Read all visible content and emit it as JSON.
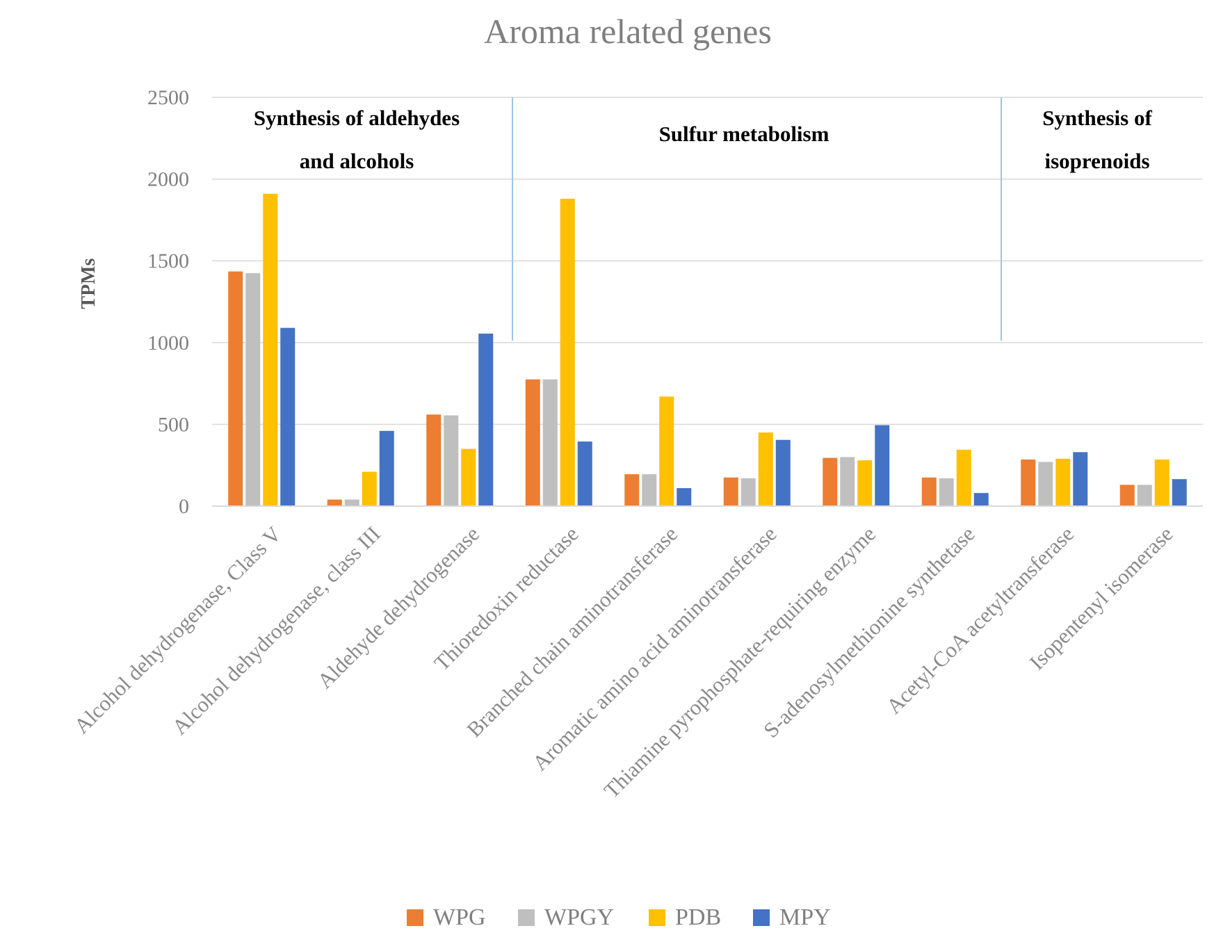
{
  "chart_data": {
    "type": "bar",
    "title": "Aroma related genes",
    "xlabel": "",
    "ylabel": "TPMs",
    "ylim": [
      0,
      2500
    ],
    "yticks": [
      0,
      500,
      1000,
      1500,
      2000,
      2500
    ],
    "grid": true,
    "legend_position": "bottom",
    "categories": [
      "Alcohol dehydrogenase, Class V",
      "Alcohol dehydrogenase, class III",
      "Aldehyde dehydrogenase",
      "Thioredoxin reductase",
      "Branched chain aminotransferase",
      "Aromatic amino acid aminotransferase",
      "Thiamine pyrophosphate-requiring enzyme",
      "S-adenosylmethionine synthetase",
      "Acetyl-CoA acetyltransferase",
      "Isopentenyl isomerase"
    ],
    "series": [
      {
        "name": "WPG",
        "color": "#ED7D31",
        "values": [
          1435,
          40,
          560,
          775,
          195,
          175,
          295,
          175,
          285,
          130
        ]
      },
      {
        "name": "WPGY",
        "color": "#BFBFBF",
        "values": [
          1425,
          40,
          555,
          775,
          195,
          170,
          300,
          170,
          270,
          130
        ]
      },
      {
        "name": "PDB",
        "color": "#FFC000",
        "values": [
          1910,
          210,
          350,
          1880,
          670,
          450,
          280,
          345,
          290,
          285
        ]
      },
      {
        "name": "MPY",
        "color": "#4472C4",
        "values": [
          1090,
          460,
          1055,
          395,
          110,
          405,
          495,
          80,
          330,
          165
        ]
      }
    ],
    "annotations": [
      {
        "lines": [
          "Synthesis of aldehydes",
          "and alcohols"
        ]
      },
      {
        "lines": [
          "Sulfur metabolism"
        ]
      },
      {
        "lines": [
          "Synthesis of",
          "isoprenoids"
        ]
      }
    ]
  }
}
